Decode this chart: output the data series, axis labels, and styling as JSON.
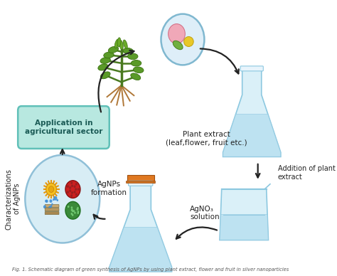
{
  "bg_color": "#ffffff",
  "labels": {
    "plant_extract": "Plant extract\n(leaf,flower, fruit etc.)",
    "addition": "Addition of plant\nextract",
    "agno3": "AgNO₃\nsolution",
    "agnps": "AgNPs\nformation",
    "application": "Application in\nagricultural sector",
    "characterizations": "Characterizations\nof AgNPs"
  },
  "caption": "Fig. 1. Schematic diagram of green synthesis of AgNPs by using plant extract, flower and fruit in silver nanoparticles",
  "arrow_color": "#222222",
  "flask_fill": "#daf0f8",
  "flask_outline": "#8cc8e0",
  "flask_neck_color": "#c8e8f4",
  "beaker_fill": "#daf0f8",
  "beaker_outline": "#8cc8e0",
  "app_box_fill": "#b8e8e0",
  "app_box_outline": "#60c0b8",
  "char_circle_fill": "#d8edf5",
  "char_circle_outline": "#90c0d8",
  "plant_circle_fill": "#deeef8",
  "plant_circle_outline": "#80b8d0"
}
